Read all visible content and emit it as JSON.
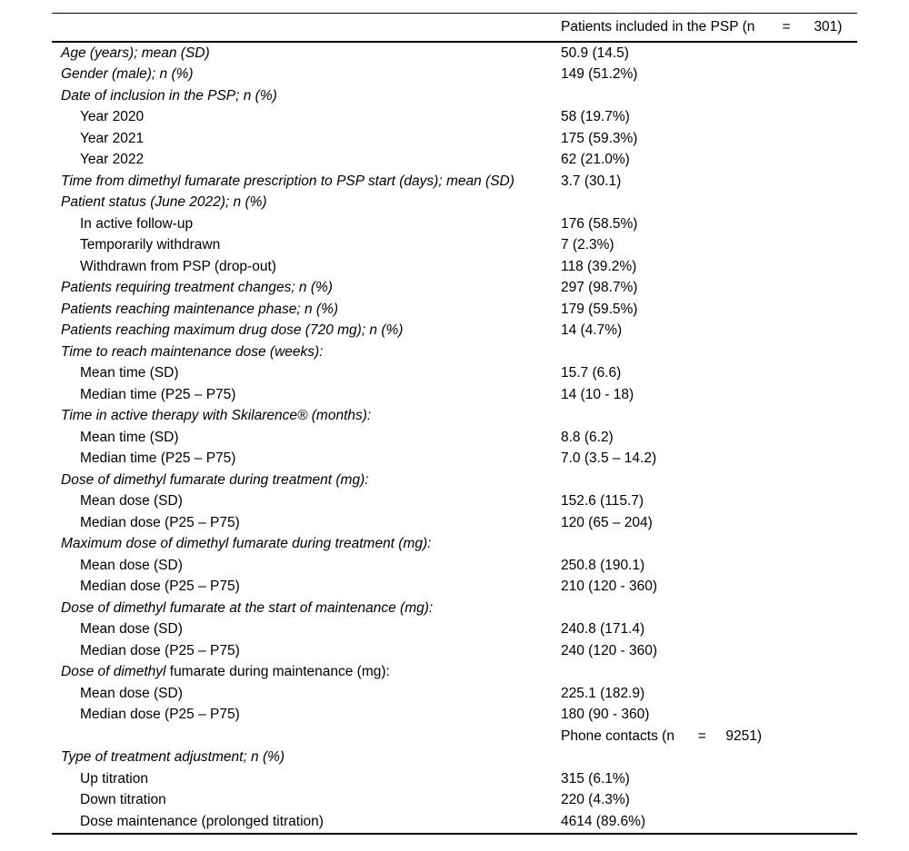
{
  "page": {
    "background": "#ffffff",
    "text_color": "#000000",
    "rule_color": "#000000"
  },
  "table": {
    "header": {
      "col2": "Patients included in the PSP (n       =      301)"
    },
    "rows": [
      {
        "type": "section",
        "label": "Age (years); mean (SD)",
        "value": "50.9 (14.5)"
      },
      {
        "type": "section",
        "label": "Gender (male); n (%)",
        "value": "149 (51.2%)"
      },
      {
        "type": "section",
        "label": "Date of inclusion in the PSP; n (%)",
        "value": ""
      },
      {
        "type": "sub",
        "label": "Year 2020",
        "value": "58 (19.7%)"
      },
      {
        "type": "sub",
        "label": "Year 2021",
        "value": "175 (59.3%)"
      },
      {
        "type": "sub",
        "label": "Year 2022",
        "value": "62 (21.0%)"
      },
      {
        "type": "section",
        "label": "Time from dimethyl fumarate prescription to PSP start (days); mean (SD)",
        "value": "3.7 (30.1)"
      },
      {
        "type": "section",
        "label": "Patient status (June 2022); n (%)",
        "value": ""
      },
      {
        "type": "sub",
        "label": "In active follow-up",
        "value": "176 (58.5%)"
      },
      {
        "type": "sub",
        "label": "Temporarily withdrawn",
        "value": "7 (2.3%)"
      },
      {
        "type": "sub",
        "label": "Withdrawn from PSP (drop-out)",
        "value": "118 (39.2%)"
      },
      {
        "type": "section",
        "label": "Patients requiring treatment changes; n (%)",
        "value": "297 (98.7%)"
      },
      {
        "type": "section",
        "label": "Patients reaching maintenance phase; n (%)",
        "value": "179 (59.5%)"
      },
      {
        "type": "section",
        "label": "Patients reaching maximum drug dose (720 mg); n (%)",
        "value": "14 (4.7%)"
      },
      {
        "type": "section",
        "label": "Time to reach maintenance dose (weeks):",
        "value": ""
      },
      {
        "type": "sub",
        "label": "Mean time (SD)",
        "value": "15.7 (6.6)"
      },
      {
        "type": "sub",
        "label": "Median time (P25 – P75)",
        "value": "14 (10 - 18)"
      },
      {
        "type": "section",
        "label": "Time in active therapy with Skilarence® (months):",
        "value": ""
      },
      {
        "type": "sub",
        "label": "Mean time (SD)",
        "value": "8.8 (6.2)"
      },
      {
        "type": "sub",
        "label": "Median time (P25 – P75)",
        "value": "7.0 (3.5 – 14.2)"
      },
      {
        "type": "section",
        "label": "Dose of dimethyl fumarate during treatment (mg):",
        "value": ""
      },
      {
        "type": "sub",
        "label": "Mean dose (SD)",
        "value": "152.6 (115.7)"
      },
      {
        "type": "sub",
        "label": "Median dose (P25 – P75)",
        "value": "120 (65 – 204)"
      },
      {
        "type": "section",
        "label": "Maximum dose of dimethyl fumarate during treatment (mg):",
        "value": ""
      },
      {
        "type": "sub",
        "label": "Mean dose (SD)",
        "value": "250.8 (190.1)"
      },
      {
        "type": "sub",
        "label": "Median dose (P25 – P75)",
        "value": "210 (120 - 360)"
      },
      {
        "type": "section",
        "label": "Dose of dimethyl fumarate at the start of maintenance (mg):",
        "value": ""
      },
      {
        "type": "sub",
        "label": "Mean dose (SD)",
        "value": "240.8 (171.4)"
      },
      {
        "type": "sub",
        "label": "Median dose (P25 – P75)",
        "value": "240 (120 - 360)"
      },
      {
        "type": "mixed",
        "label_italic": "Dose of dimethyl",
        "label_roman": " fumarate during maintenance (mg):",
        "value": ""
      },
      {
        "type": "sub",
        "label": "Mean dose (SD)",
        "value": "225.1 (182.9)"
      },
      {
        "type": "sub",
        "label": "Median dose (P25 – P75)",
        "value": "180 (90 - 360)"
      },
      {
        "type": "phone",
        "label": "",
        "value": "Phone contacts (n      =     9251)"
      },
      {
        "type": "section",
        "label": "Type of treatment adjustment; n (%)",
        "value": ""
      },
      {
        "type": "sub",
        "label": "Up titration",
        "value": "315 (6.1%)"
      },
      {
        "type": "sub",
        "label": "Down titration",
        "value": "220 (4.3%)"
      },
      {
        "type": "sub",
        "label": "Dose maintenance (prolonged titration)",
        "value": "4614 (89.6%)"
      }
    ]
  }
}
